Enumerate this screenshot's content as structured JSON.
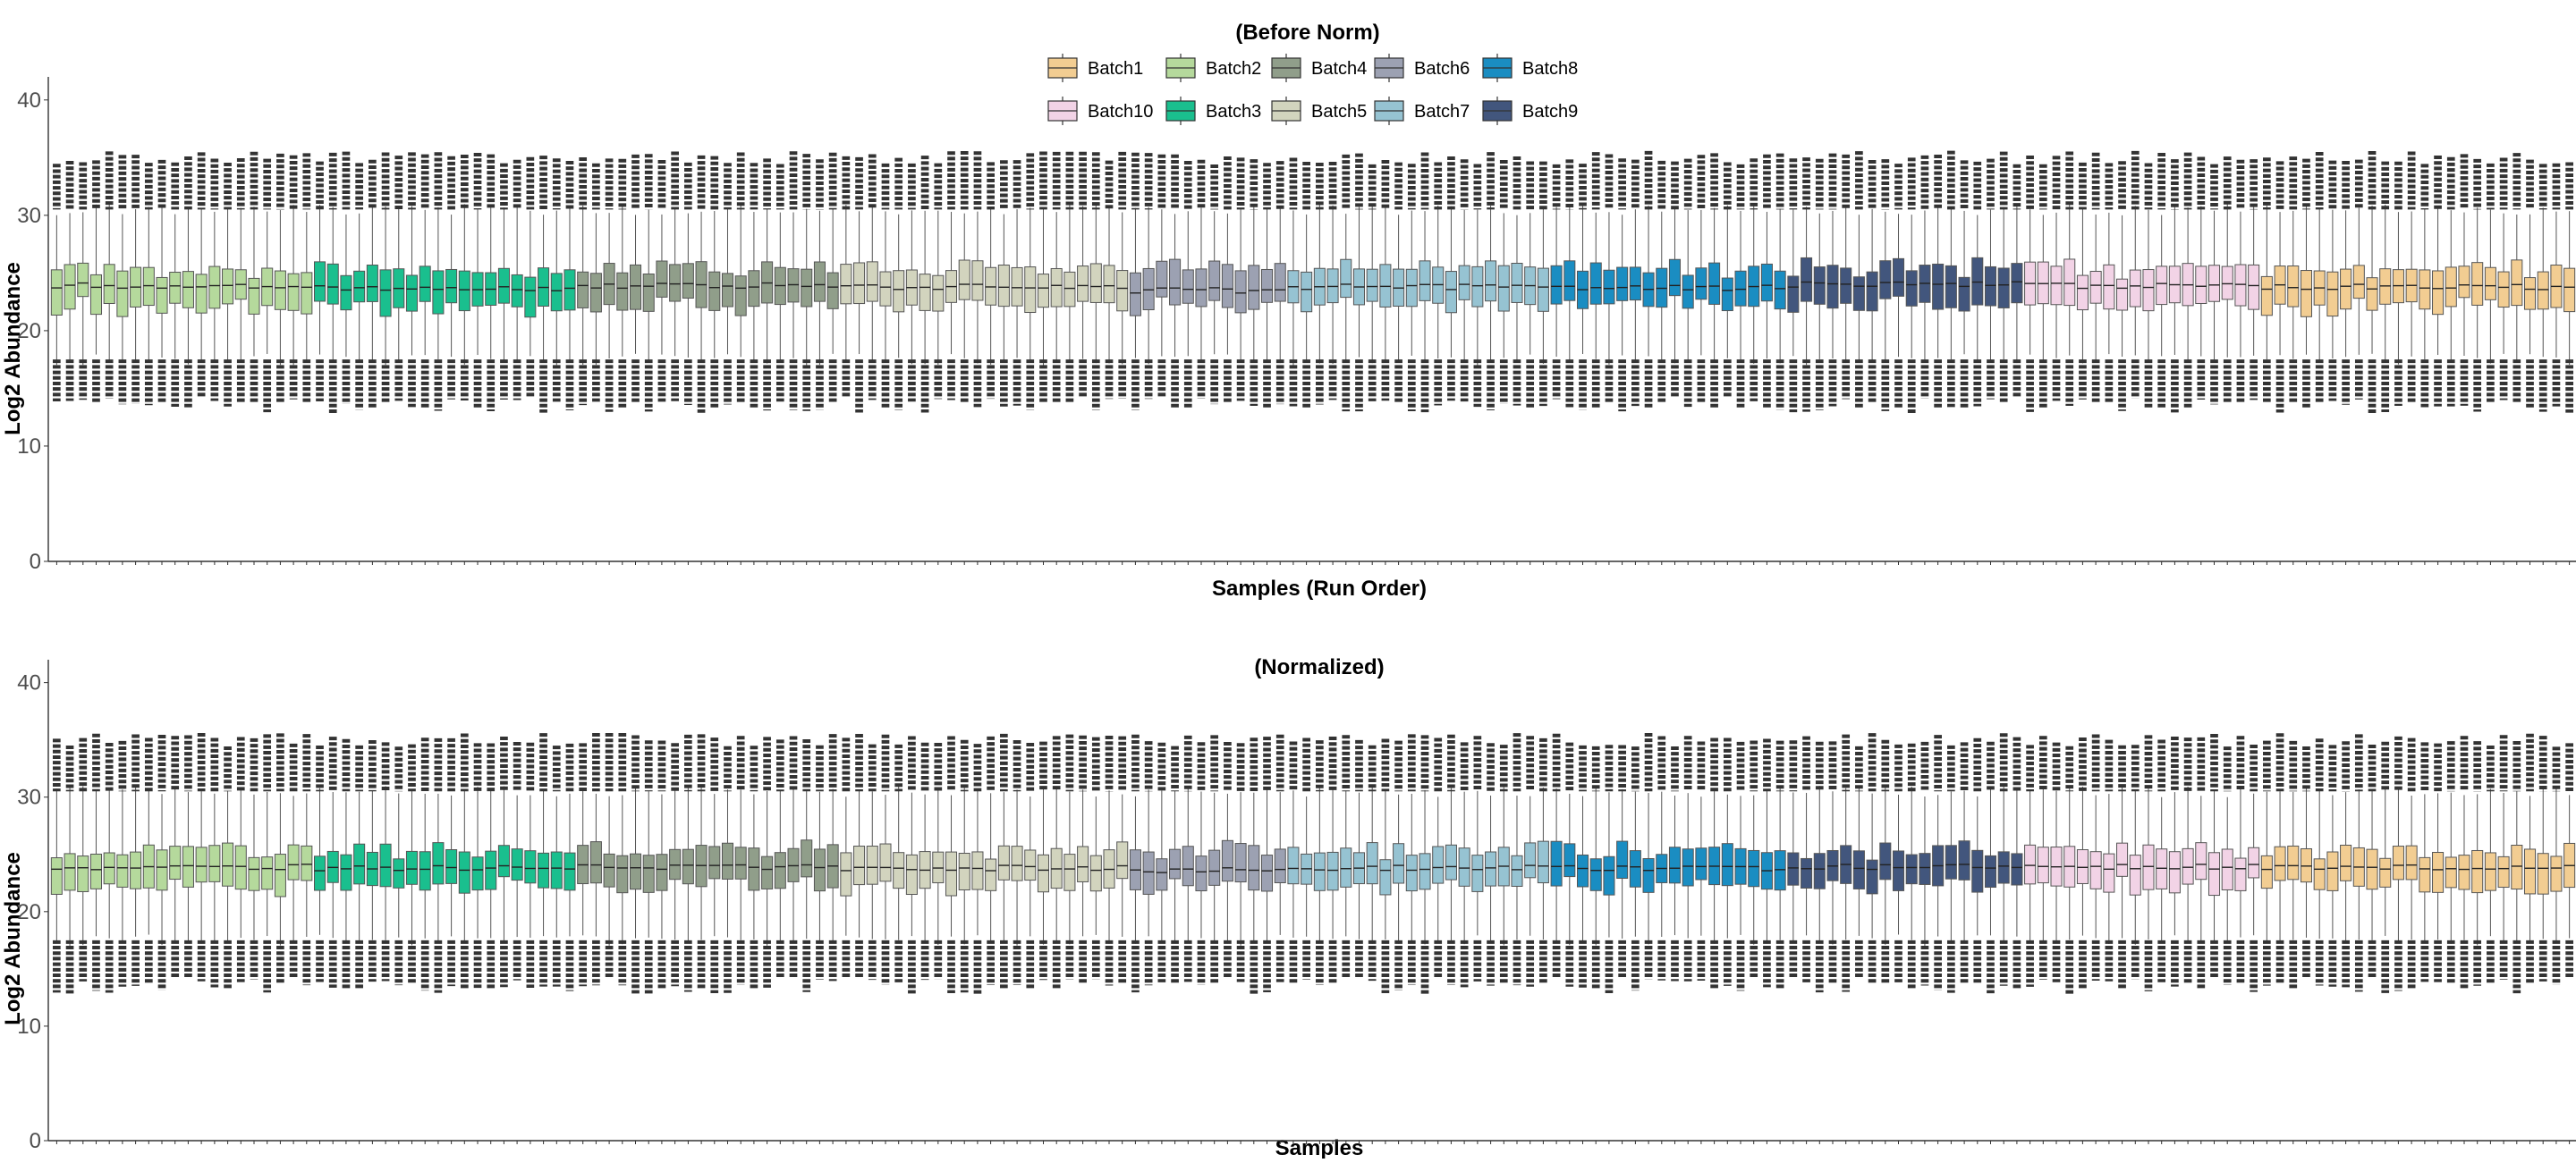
{
  "chart_data": [
    {
      "type": "box",
      "title": "(Before Norm)",
      "xlabel": "Samples (Run Order)",
      "ylabel": "Log2  Abundance",
      "ylim": [
        0,
        42
      ],
      "yticks": [
        0,
        10,
        20,
        30,
        40
      ],
      "grid": false,
      "legend_placement": "top",
      "legend": [
        {
          "name": "Batch1",
          "color": "#F2CD92"
        },
        {
          "name": "Batch2",
          "color": "#B5D99C"
        },
        {
          "name": "Batch4",
          "color": "#909E8A"
        },
        {
          "name": "Batch6",
          "color": "#9CA1B2"
        },
        {
          "name": "Batch8",
          "color": "#1A8DC2"
        },
        {
          "name": "Batch10",
          "color": "#F2D3E6"
        },
        {
          "name": "Batch3",
          "color": "#1ABF8E"
        },
        {
          "name": "Batch5",
          "color": "#D2D4BE"
        },
        {
          "name": "Batch7",
          "color": "#96C3D2"
        },
        {
          "name": "Batch9",
          "color": "#42567D"
        }
      ],
      "groups_in_run_order": [
        {
          "batch": "Batch2",
          "samples": 20,
          "median": 23.9
        },
        {
          "batch": "Batch3",
          "samples": 20,
          "median": 23.7
        },
        {
          "batch": "Batch4",
          "samples": 20,
          "median": 23.9
        },
        {
          "batch": "Batch5",
          "samples": 22,
          "median": 23.8
        },
        {
          "batch": "Batch6",
          "samples": 12,
          "median": 23.5
        },
        {
          "batch": "Batch7",
          "samples": 20,
          "median": 23.8
        },
        {
          "batch": "Batch8",
          "samples": 18,
          "median": 23.7
        },
        {
          "batch": "Batch9",
          "samples": 18,
          "median": 24.0
        },
        {
          "batch": "Batch10",
          "samples": 18,
          "median": 23.9
        },
        {
          "batch": "Batch1",
          "samples": 24,
          "median": 23.8
        }
      ],
      "box_summary": {
        "q1": 22.5,
        "q3": 25.0,
        "whisker_low": 17.5,
        "whisker_high": 30.5,
        "outliers_low": [
          13.5,
          17.5
        ],
        "outliers_high": [
          30.5,
          35.0
        ]
      }
    },
    {
      "type": "box",
      "title": "(Normalized)",
      "xlabel": "Samples",
      "ylabel": "Log2  Abundance",
      "ylim": [
        0,
        42
      ],
      "yticks": [
        0,
        10,
        20,
        30,
        40
      ],
      "grid": false,
      "groups_in_run_order": [
        {
          "batch": "Batch2",
          "samples": 20,
          "median": 23.9
        },
        {
          "batch": "Batch3",
          "samples": 20,
          "median": 23.8
        },
        {
          "batch": "Batch4",
          "samples": 20,
          "median": 23.9
        },
        {
          "batch": "Batch5",
          "samples": 22,
          "median": 23.8
        },
        {
          "batch": "Batch6",
          "samples": 12,
          "median": 23.6
        },
        {
          "batch": "Batch7",
          "samples": 20,
          "median": 23.8
        },
        {
          "batch": "Batch8",
          "samples": 18,
          "median": 23.8
        },
        {
          "batch": "Batch9",
          "samples": 18,
          "median": 23.9
        },
        {
          "batch": "Batch10",
          "samples": 18,
          "median": 23.9
        },
        {
          "batch": "Batch1",
          "samples": 24,
          "median": 23.9
        }
      ],
      "box_summary": {
        "q1": 22.6,
        "q3": 25.0,
        "whisker_low": 17.5,
        "whisker_high": 30.5,
        "outliers_low": [
          13.5,
          17.5
        ],
        "outliers_high": [
          30.5,
          35.0
        ]
      }
    }
  ]
}
